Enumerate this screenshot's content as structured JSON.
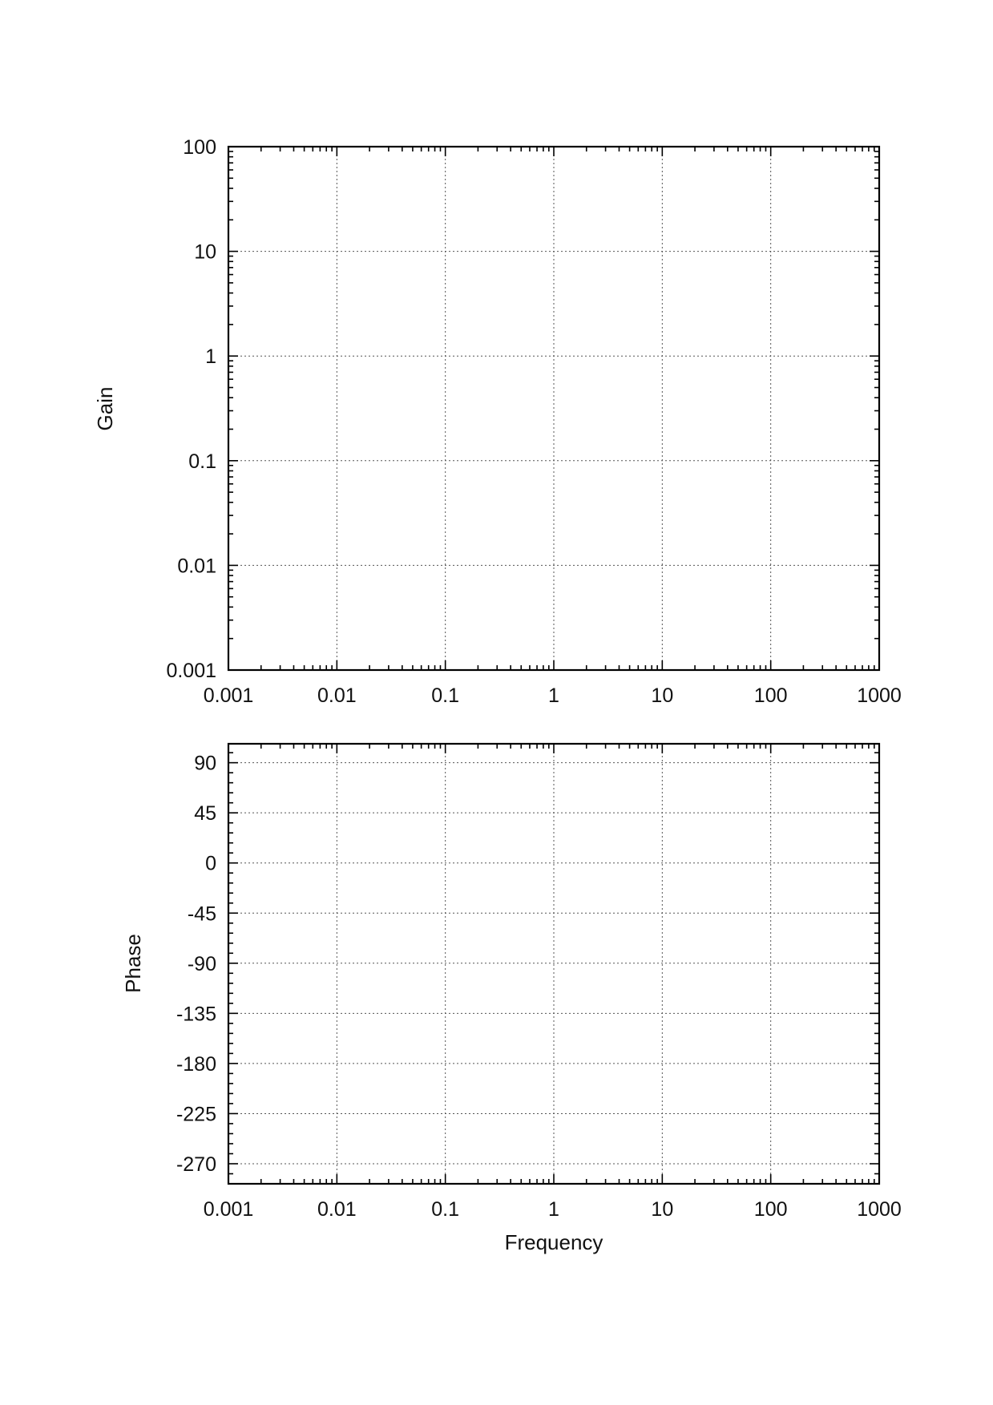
{
  "chart_data": [
    {
      "type": "line",
      "title": "",
      "xlabel": "",
      "ylabel": "Gain",
      "x_scale": "log",
      "y_scale": "log",
      "xlim": [
        0.001,
        1000
      ],
      "ylim": [
        0.001,
        100
      ],
      "x_ticks": [
        0.001,
        0.01,
        0.1,
        1,
        10,
        100,
        1000
      ],
      "x_tick_labels": [
        "0.001",
        "0.01",
        "0.1",
        "1",
        "10",
        "100",
        "1000"
      ],
      "y_ticks": [
        0.001,
        0.01,
        0.1,
        1,
        10,
        100
      ],
      "y_tick_labels": [
        "0.001",
        "0.01",
        "0.1",
        "1",
        "10",
        "100"
      ],
      "grid": true,
      "series": []
    },
    {
      "type": "line",
      "title": "",
      "xlabel": "Frequency",
      "ylabel": "Phase",
      "x_scale": "log",
      "y_scale": "linear",
      "xlim": [
        0.001,
        1000
      ],
      "ylim": [
        -288,
        107
      ],
      "x_ticks": [
        0.001,
        0.01,
        0.1,
        1,
        10,
        100,
        1000
      ],
      "x_tick_labels": [
        "0.001",
        "0.01",
        "0.1",
        "1",
        "10",
        "100",
        "1000"
      ],
      "y_ticks": [
        90,
        45,
        0,
        -45,
        -90,
        -135,
        -180,
        -225,
        -270
      ],
      "y_tick_labels": [
        "90",
        "45",
        "0",
        "-45",
        "-90",
        "-135",
        "-180",
        "-225",
        "-270"
      ],
      "grid": true,
      "series": []
    }
  ]
}
